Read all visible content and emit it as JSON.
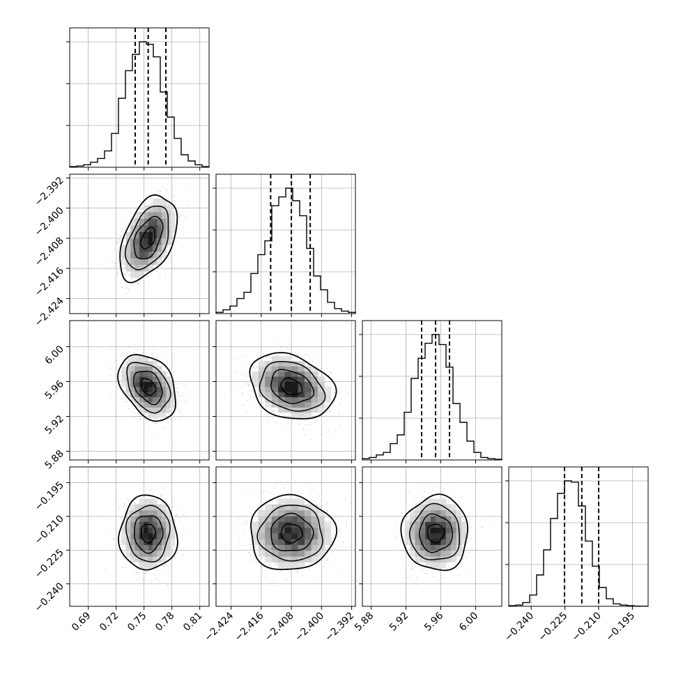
{
  "chart_data": {
    "type": "corner",
    "title": "",
    "parameters": [
      {
        "range": [
          0.67,
          0.82
        ],
        "ticks": [
          0.69,
          0.72,
          0.75,
          0.78,
          0.81
        ],
        "tick_labels": [
          "0.69",
          "0.72",
          "0.75",
          "0.78",
          "0.81"
        ],
        "mean": 0.7545,
        "sigma": 0.0134,
        "quantiles": [
          0.7405,
          0.7545,
          0.7735
        ],
        "hist_values": [
          0.005,
          0.01,
          0.02,
          0.04,
          0.07,
          0.13,
          0.27,
          0.55,
          0.77,
          0.9,
          1.0,
          0.98,
          0.88,
          0.6,
          0.4,
          0.23,
          0.1,
          0.05,
          0.02,
          0.005
        ]
      },
      {
        "range": [
          -2.428,
          -2.391
        ],
        "ticks": [
          -2.424,
          -2.416,
          -2.408,
          -2.4,
          -2.392
        ],
        "tick_labels": [
          "−2.424",
          "−2.416",
          "−2.408",
          "−2.400",
          "−2.392"
        ],
        "mean": -2.408,
        "sigma": 0.0049,
        "quantiles": [
          -2.4135,
          -2.408,
          -2.403
        ],
        "hist_values": [
          0.01,
          0.03,
          0.06,
          0.12,
          0.17,
          0.32,
          0.47,
          0.58,
          0.86,
          0.93,
          1.0,
          0.9,
          0.78,
          0.52,
          0.3,
          0.19,
          0.09,
          0.04,
          0.02,
          0.01
        ]
      },
      {
        "range": [
          5.87,
          6.03
        ],
        "ticks": [
          5.88,
          5.92,
          5.96,
          6.0
        ],
        "tick_labels": [
          "5.88",
          "5.92",
          "5.96",
          "6.00"
        ],
        "mean": 5.954,
        "sigma": 0.0165,
        "quantiles": [
          5.938,
          5.954,
          5.97
        ],
        "hist_values": [
          0.01,
          0.02,
          0.04,
          0.06,
          0.13,
          0.2,
          0.38,
          0.65,
          0.81,
          0.93,
          1.0,
          0.92,
          0.74,
          0.45,
          0.3,
          0.15,
          0.06,
          0.02,
          0.01,
          0.005
        ]
      },
      {
        "range": [
          -0.25,
          -0.188
        ],
        "ticks": [
          -0.24,
          -0.225,
          -0.21,
          -0.195
        ],
        "tick_labels": [
          "−0.240",
          "−0.225",
          "−0.210",
          "−0.195"
        ],
        "mean": -0.2175,
        "sigma": 0.0072,
        "quantiles": [
          -0.2252,
          -0.2175,
          -0.21
        ],
        "hist_values": [
          0.005,
          0.01,
          0.03,
          0.09,
          0.25,
          0.45,
          0.7,
          0.9,
          1.0,
          0.99,
          0.8,
          0.52,
          0.32,
          0.15,
          0.06,
          0.02,
          0.01,
          0.005,
          0.002,
          0.001
        ]
      }
    ],
    "correlations": {
      "1_0": 0.45,
      "2_0": -0.35,
      "2_1": -0.25,
      "3_0": 0.0,
      "3_1": 0.0,
      "3_2": 0.0
    },
    "contour_levels_sigma": [
      0.5,
      1.0,
      1.5,
      2.0
    ],
    "quantile_linestyle": "dashed",
    "grid": true,
    "colors": {
      "line": "#000000",
      "grid": "#b0b0b0",
      "scatter": "#8c8c8c",
      "density_dark": "#111111"
    }
  }
}
